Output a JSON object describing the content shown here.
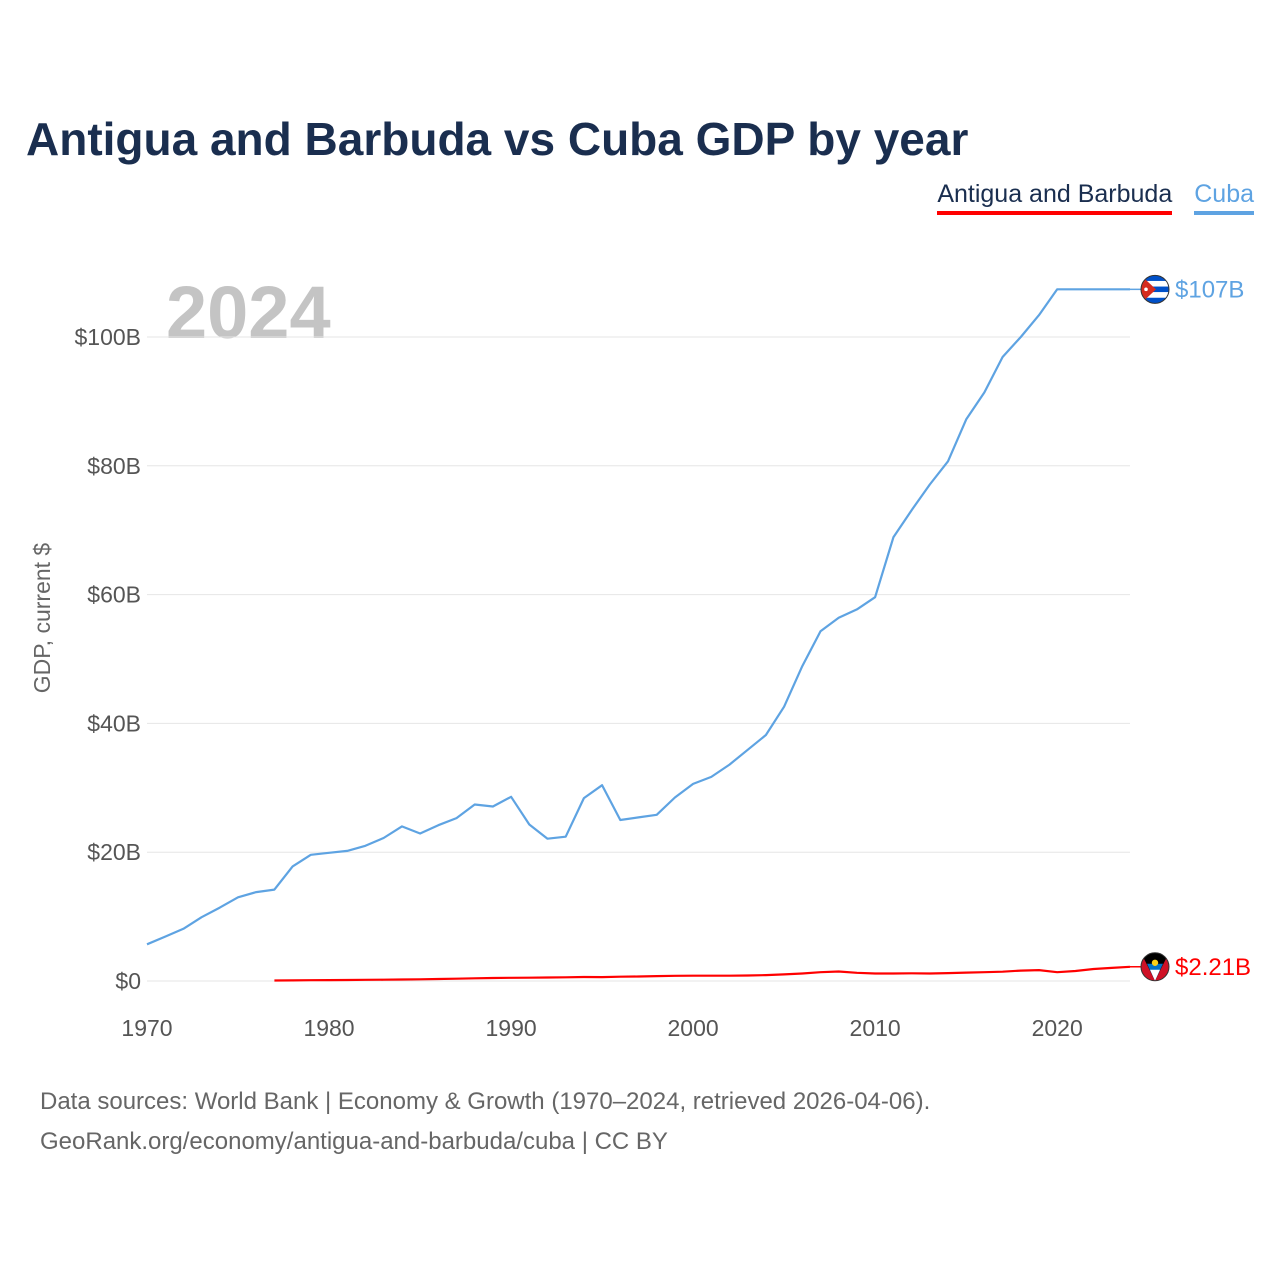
{
  "header": {
    "title": "Antigua and Barbuda vs Cuba GDP by year"
  },
  "legend": {
    "items": [
      {
        "label": "Antigua and Barbuda",
        "color": "#ff0000"
      },
      {
        "label": "Cuba",
        "color": "#5ea3e2"
      }
    ]
  },
  "footer": {
    "line1": "Data sources: World Bank | Economy & Growth (1970–2024, retrieved 2026-04-06).",
    "line2": "GeoRank.org/economy/antigua-and-barbuda/cuba | CC BY"
  },
  "chart_data": {
    "type": "line",
    "title": "Antigua and Barbuda vs Cuba GDP by year",
    "year_label": "2024",
    "xlabel": "",
    "ylabel": "GDP, current $",
    "xlim": [
      1970,
      2024
    ],
    "ylim": [
      0,
      110
    ],
    "x_ticks": [
      {
        "value": 1970,
        "label": "1970"
      },
      {
        "value": 1980,
        "label": "1980"
      },
      {
        "value": 1990,
        "label": "1990"
      },
      {
        "value": 2000,
        "label": "2000"
      },
      {
        "value": 2010,
        "label": "2010"
      },
      {
        "value": 2020,
        "label": "2020"
      }
    ],
    "y_ticks": [
      {
        "value": 0,
        "label": "$0"
      },
      {
        "value": 20,
        "label": "$20B"
      },
      {
        "value": 40,
        "label": "$40B"
      },
      {
        "value": 60,
        "label": "$60B"
      },
      {
        "value": 80,
        "label": "$80B"
      },
      {
        "value": 100,
        "label": "$100B"
      }
    ],
    "grid": true,
    "series": [
      {
        "name": "Cuba",
        "color": "#5ea3e2",
        "end_label": "$107B",
        "flag": "cuba-flag-icon",
        "points": [
          [
            1970,
            5.7
          ],
          [
            1971,
            6.9
          ],
          [
            1972,
            8.1
          ],
          [
            1973,
            9.9
          ],
          [
            1974,
            11.4
          ],
          [
            1975,
            13.0
          ],
          [
            1976,
            13.8
          ],
          [
            1977,
            14.2
          ],
          [
            1978,
            17.8
          ],
          [
            1979,
            19.6
          ],
          [
            1980,
            19.9
          ],
          [
            1981,
            20.2
          ],
          [
            1982,
            21.0
          ],
          [
            1983,
            22.2
          ],
          [
            1984,
            24.0
          ],
          [
            1985,
            22.9
          ],
          [
            1986,
            24.2
          ],
          [
            1987,
            25.3
          ],
          [
            1988,
            27.4
          ],
          [
            1989,
            27.1
          ],
          [
            1990,
            28.6
          ],
          [
            1991,
            24.3
          ],
          [
            1992,
            22.1
          ],
          [
            1993,
            22.4
          ],
          [
            1994,
            28.4
          ],
          [
            1995,
            30.4
          ],
          [
            1996,
            25.0
          ],
          [
            1997,
            25.4
          ],
          [
            1998,
            25.8
          ],
          [
            1999,
            28.5
          ],
          [
            2000,
            30.6
          ],
          [
            2001,
            31.7
          ],
          [
            2002,
            33.6
          ],
          [
            2003,
            35.9
          ],
          [
            2004,
            38.2
          ],
          [
            2005,
            42.6
          ],
          [
            2006,
            48.9
          ],
          [
            2007,
            54.3
          ],
          [
            2008,
            56.4
          ],
          [
            2009,
            57.7
          ],
          [
            2010,
            59.6
          ],
          [
            2011,
            68.9
          ],
          [
            2012,
            73.1
          ],
          [
            2013,
            77.1
          ],
          [
            2014,
            80.7
          ],
          [
            2015,
            87.2
          ],
          [
            2016,
            91.4
          ],
          [
            2017,
            96.9
          ],
          [
            2018,
            100.0
          ],
          [
            2019,
            103.4
          ],
          [
            2020,
            107.4
          ],
          [
            2021,
            107.4
          ],
          [
            2022,
            107.4
          ],
          [
            2023,
            107.4
          ],
          [
            2024,
            107.4
          ]
        ]
      },
      {
        "name": "Antigua and Barbuda",
        "color": "#ff0000",
        "end_label": "$2.21B",
        "flag": "antigua-flag-icon",
        "points": [
          [
            1977,
            0.08
          ],
          [
            1978,
            0.1
          ],
          [
            1979,
            0.12
          ],
          [
            1980,
            0.14
          ],
          [
            1981,
            0.16
          ],
          [
            1982,
            0.18
          ],
          [
            1983,
            0.2
          ],
          [
            1984,
            0.23
          ],
          [
            1985,
            0.26
          ],
          [
            1986,
            0.31
          ],
          [
            1987,
            0.36
          ],
          [
            1988,
            0.42
          ],
          [
            1989,
            0.47
          ],
          [
            1990,
            0.5
          ],
          [
            1991,
            0.52
          ],
          [
            1992,
            0.55
          ],
          [
            1993,
            0.57
          ],
          [
            1994,
            0.62
          ],
          [
            1995,
            0.6
          ],
          [
            1996,
            0.66
          ],
          [
            1997,
            0.7
          ],
          [
            1998,
            0.76
          ],
          [
            1999,
            0.81
          ],
          [
            2000,
            0.83
          ],
          [
            2001,
            0.82
          ],
          [
            2002,
            0.82
          ],
          [
            2003,
            0.86
          ],
          [
            2004,
            0.92
          ],
          [
            2005,
            1.02
          ],
          [
            2006,
            1.16
          ],
          [
            2007,
            1.37
          ],
          [
            2008,
            1.48
          ],
          [
            2009,
            1.28
          ],
          [
            2010,
            1.17
          ],
          [
            2011,
            1.16
          ],
          [
            2012,
            1.2
          ],
          [
            2013,
            1.17
          ],
          [
            2014,
            1.23
          ],
          [
            2015,
            1.3
          ],
          [
            2016,
            1.37
          ],
          [
            2017,
            1.44
          ],
          [
            2018,
            1.61
          ],
          [
            2019,
            1.69
          ],
          [
            2020,
            1.37
          ],
          [
            2021,
            1.56
          ],
          [
            2022,
            1.87
          ],
          [
            2023,
            2.03
          ],
          [
            2024,
            2.21
          ]
        ]
      }
    ]
  }
}
